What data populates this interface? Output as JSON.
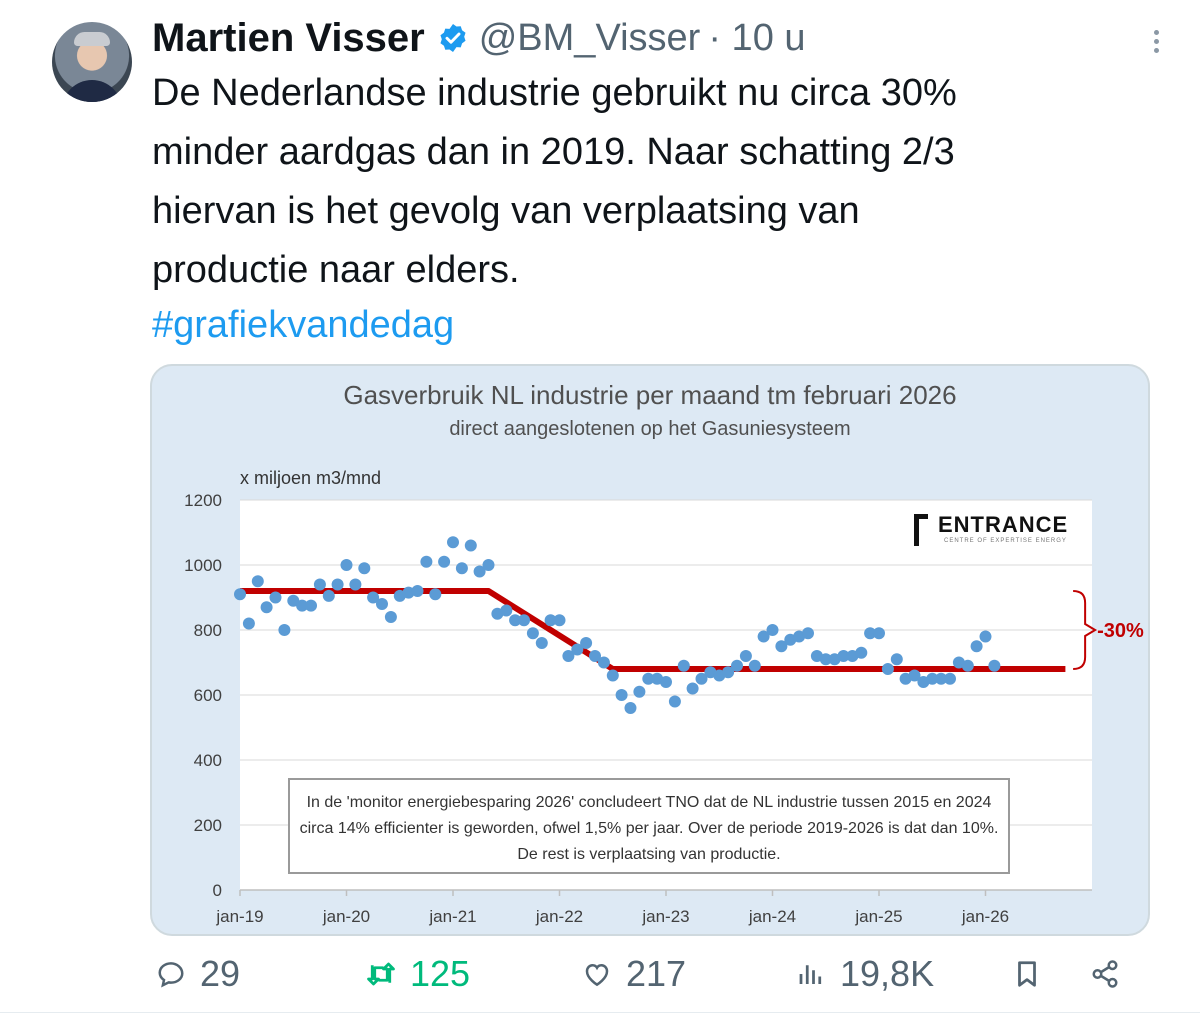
{
  "author": {
    "name": "Martien Visser",
    "handle": "@BM_Visser",
    "time": "· 10 u"
  },
  "tweet": {
    "text": "De Nederlandse industrie gebruikt nu circa 30%\nminder aardgas dan in 2019. Naar schatting 2/3\nhiervan is het gevolg van verplaatsing van\nproductie naar elders.",
    "hashtag": "#grafiekvandedag"
  },
  "chart": {
    "logo_text": "ENTRANCE",
    "logo_tagline": "CENTRE OF EXPERTISE ENERGY",
    "note": "In de 'monitor energiebesparing 2026' concludeert TNO dat de NL industrie tussen 2015 en 2024 circa 14% efficienter is geworden, ofwel 1,5% per jaar. Over de periode 2019-2026 is dat dan 10%. De rest is verplaatsing van productie."
  },
  "chart_data": {
    "type": "scatter",
    "title": "Gasverbruik NL industrie per maand tm februari 2026",
    "subtitle": "direct aangeslotenen op het Gasuniesysteem",
    "ylabel": "x miljoen m3/mnd",
    "ylim": [
      0,
      1200
    ],
    "yticks": [
      0,
      200,
      400,
      600,
      800,
      1000,
      1200
    ],
    "xticks": [
      "jan-19",
      "jan-20",
      "jan-21",
      "jan-22",
      "jan-23",
      "jan-24",
      "jan-25",
      "jan-26"
    ],
    "grid": true,
    "annotation": "-30%",
    "series": [
      {
        "kind": "points",
        "x": [
          0,
          1,
          2,
          3,
          4,
          5,
          6,
          7,
          8,
          9,
          10,
          11,
          12,
          13,
          14,
          15,
          16,
          17,
          18,
          19,
          20,
          21,
          22,
          23,
          24,
          25,
          26,
          27,
          28,
          29,
          30,
          31,
          32,
          33,
          34,
          35,
          36,
          37,
          38,
          39,
          40,
          41,
          42,
          43,
          44,
          45,
          46,
          47,
          48,
          49,
          50,
          51,
          52,
          53,
          54,
          55,
          56,
          57,
          58,
          59,
          60,
          61,
          62,
          63,
          64,
          65,
          66,
          67,
          68,
          69,
          70,
          71,
          72,
          73,
          74,
          75,
          76,
          77,
          78,
          79,
          80,
          81,
          82,
          83,
          84,
          85
        ],
        "y": [
          910,
          820,
          950,
          870,
          900,
          800,
          890,
          875,
          875,
          940,
          905,
          940,
          1000,
          940,
          990,
          900,
          880,
          840,
          905,
          915,
          920,
          1010,
          910,
          1010,
          1070,
          990,
          1060,
          980,
          1000,
          850,
          860,
          830,
          830,
          790,
          760,
          830,
          830,
          720,
          740,
          760,
          720,
          700,
          660,
          600,
          560,
          610,
          650,
          650,
          640,
          580,
          690,
          620,
          650,
          670,
          660,
          670,
          690,
          720,
          690,
          780,
          800,
          750,
          770,
          780,
          790,
          720,
          710,
          710,
          720,
          720,
          730,
          790,
          790,
          680,
          710,
          650,
          660,
          640,
          650,
          650,
          650,
          700,
          690,
          750,
          780,
          690
        ]
      },
      {
        "kind": "trend",
        "x": [
          0,
          24,
          28,
          42,
          85,
          93
        ],
        "y": [
          920,
          920,
          920,
          680,
          680,
          680
        ]
      }
    ]
  },
  "actions": {
    "replies": "29",
    "retweets": "125",
    "likes": "217",
    "views": "19,8K"
  },
  "colors": {
    "accent": "#1d9bf0",
    "retweet": "#00ba7c",
    "muted": "#536471",
    "chart_points": "#5b9bd5",
    "chart_trend": "#c00000",
    "chart_bg": "#dde9f4"
  }
}
